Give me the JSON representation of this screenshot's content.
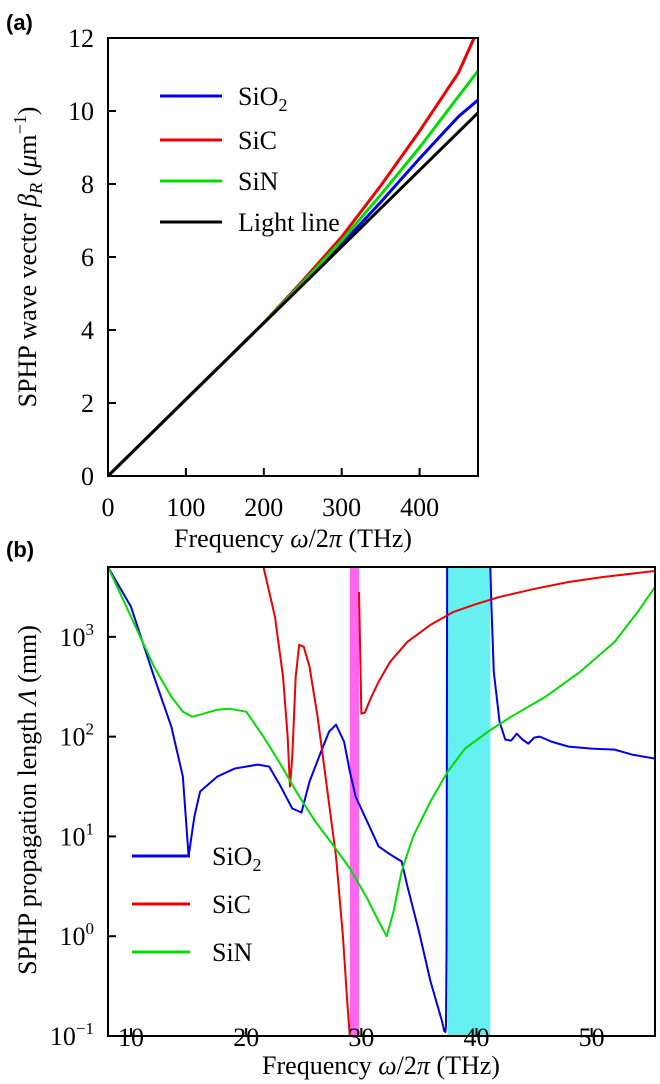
{
  "chart_data": [
    {
      "panel": "(a)",
      "type": "line",
      "xlabel": {
        "prefix": "Frequency ",
        "omega": "ω",
        "mid": "/2",
        "pi": "π",
        "unit": " (THz)"
      },
      "ylabel": {
        "prefix": "SPHP wave vector ",
        "beta": "β",
        "sub": "R",
        "open": " (",
        "mu": "μ",
        "unit": "m",
        "exp": "−1",
        "close": ")"
      },
      "xlim": [
        0,
        475
      ],
      "ylim": [
        0,
        12
      ],
      "xticks": [
        "0",
        "100",
        "200",
        "300",
        "400"
      ],
      "yticks": [
        "0",
        "2",
        "4",
        "6",
        "8",
        "10",
        "12"
      ],
      "legend_position": "top-left",
      "series": [
        {
          "name": "SiO",
          "name_sub": "2",
          "color": "#0000ee",
          "x": [
            0,
            100,
            200,
            250,
            300,
            350,
            400,
            450,
            475
          ],
          "y": [
            0,
            2.1,
            4.2,
            5.25,
            6.35,
            7.5,
            8.7,
            9.85,
            10.3
          ]
        },
        {
          "name": "SiC",
          "color": "#ee0000",
          "x": [
            0,
            100,
            200,
            250,
            300,
            350,
            400,
            450,
            470
          ],
          "y": [
            0,
            2.1,
            4.2,
            5.35,
            6.55,
            7.95,
            9.45,
            11.05,
            12.0
          ]
        },
        {
          "name": "SiN",
          "color": "#00dd00",
          "x": [
            0,
            100,
            200,
            250,
            300,
            350,
            400,
            450,
            475
          ],
          "y": [
            0,
            2.1,
            4.2,
            5.3,
            6.45,
            7.7,
            9.0,
            10.4,
            11.1
          ]
        },
        {
          "name": "Light line",
          "color": "#000000",
          "x": [
            0,
            475
          ],
          "y": [
            0,
            9.95
          ]
        }
      ]
    },
    {
      "panel": "(b)",
      "type": "line",
      "xlabel": {
        "prefix": "Frequency ",
        "omega": "ω",
        "mid": "/2",
        "pi": "π",
        "unit": " (THz)"
      },
      "ylabel": {
        "prefix": "SPHP propagation length ",
        "lambda": "Λ",
        "unit": " (mm)"
      },
      "xlim": [
        8,
        55.5
      ],
      "ylim_log10": [
        -1,
        3.7
      ],
      "y_scale": "log",
      "xticks": [
        "10",
        "20",
        "30",
        "40",
        "50"
      ],
      "yticks": [
        {
          "base": "10",
          "exp": "−1",
          "log": -1
        },
        {
          "base": "10",
          "exp": "0",
          "log": 0
        },
        {
          "base": "10",
          "exp": "1",
          "log": 1
        },
        {
          "base": "10",
          "exp": "2",
          "log": 2
        },
        {
          "base": "10",
          "exp": "3",
          "log": 3
        }
      ],
      "legend_position": "bottom-left",
      "bands": [
        {
          "x0": 29.0,
          "x1": 29.8,
          "color": "#ff66ee"
        },
        {
          "x0": 37.5,
          "x1": 41.2,
          "color": "#66f0f0"
        }
      ],
      "series": [
        {
          "name": "SiO",
          "name_sub": "2",
          "color": "#0000ee",
          "x": [
            8.0,
            10.0,
            12.0,
            13.5,
            14.5,
            15.0,
            15.5,
            16.0,
            17.5,
            19.0,
            21.0,
            22.0,
            23.0,
            24.0,
            24.8,
            25.5,
            26.5,
            27.2,
            27.8,
            28.5,
            29.0,
            29.5,
            30.5,
            31.5,
            32.5,
            33.2,
            33.5,
            34.0,
            35.0,
            36.0,
            36.5,
            37.0,
            37.2,
            37.3,
            37.35,
            37.4,
            37.45,
            41.2,
            41.3,
            41.5,
            42.0,
            42.5,
            43.0,
            43.5,
            44.0,
            44.5,
            45.0,
            45.5,
            46.5,
            48.0,
            50.0,
            52.0,
            53.5,
            55.5
          ],
          "logy": [
            3.7,
            3.3,
            2.6,
            2.1,
            1.6,
            0.8,
            1.2,
            1.45,
            1.6,
            1.68,
            1.72,
            1.7,
            1.5,
            1.28,
            1.24,
            1.55,
            1.85,
            2.05,
            2.12,
            1.95,
            1.65,
            1.4,
            1.15,
            0.9,
            0.82,
            0.77,
            0.75,
            0.5,
            0.05,
            -0.45,
            -0.65,
            -0.85,
            -0.95,
            -0.96,
            -0.9,
            -0.1,
            3.7,
            3.7,
            3.3,
            2.65,
            2.15,
            1.97,
            1.96,
            2.03,
            1.97,
            1.93,
            1.99,
            2.0,
            1.95,
            1.9,
            1.88,
            1.87,
            1.82,
            1.78
          ]
        },
        {
          "name": "SiC",
          "color": "#ee0000",
          "segments": [
            {
              "x": [
                21.5,
                22.5,
                23.2,
                23.6,
                23.8,
                24.0,
                24.3,
                24.6,
                25.0,
                25.5,
                26.2,
                27.0,
                27.8,
                28.4,
                28.8,
                29.0
              ],
              "logy": [
                3.7,
                3.2,
                2.6,
                2.0,
                1.5,
                1.8,
                2.6,
                2.92,
                2.9,
                2.7,
                2.2,
                1.5,
                0.8,
                0.0,
                -0.7,
                -1.0
              ]
            },
            {
              "x": [
                29.8,
                30.0,
                30.3,
                30.8,
                31.5,
                32.5,
                34.0,
                36.0,
                38.0,
                40.0,
                42.0,
                45.0,
                48.0,
                51.0,
                55.5
              ],
              "logy": [
                3.45,
                2.23,
                2.24,
                2.38,
                2.55,
                2.75,
                2.95,
                3.12,
                3.25,
                3.33,
                3.4,
                3.48,
                3.55,
                3.6,
                3.66
              ]
            }
          ]
        },
        {
          "name": "SiN",
          "color": "#00dd00",
          "x": [
            8.0,
            10.0,
            12.0,
            13.5,
            14.5,
            15.3,
            16.0,
            17.5,
            18.5,
            20.0,
            21.5,
            23.0,
            24.5,
            26.0,
            27.5,
            29.0,
            30.5,
            31.5,
            32.2,
            32.8,
            33.5,
            34.5,
            36.0,
            37.5,
            39.0,
            41.0,
            43.0,
            46.0,
            49.0,
            52.0,
            54.0,
            55.5
          ],
          "logy": [
            3.7,
            3.2,
            2.7,
            2.4,
            2.25,
            2.2,
            2.22,
            2.27,
            2.28,
            2.25,
            2.0,
            1.72,
            1.42,
            1.15,
            0.92,
            0.68,
            0.38,
            0.15,
            0.0,
            0.25,
            0.65,
            1.0,
            1.35,
            1.65,
            1.88,
            2.05,
            2.2,
            2.4,
            2.65,
            2.95,
            3.25,
            3.5
          ]
        }
      ]
    }
  ]
}
